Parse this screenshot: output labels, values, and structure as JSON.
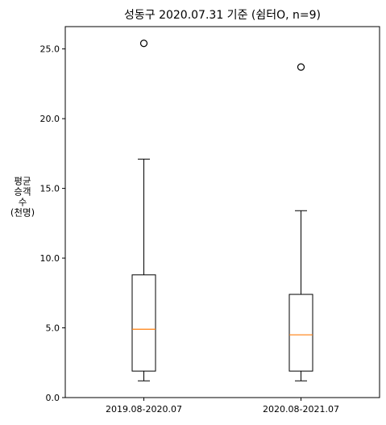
{
  "chart_data": {
    "type": "boxplot",
    "title": "성동구 2020.07.31 기준 (쉼터O, n=9)",
    "ylabel_lines": [
      "평균",
      "승객",
      "수",
      "(천명)"
    ],
    "xlabel": "",
    "ylim": [
      0,
      26.6
    ],
    "yticks": [
      0,
      5,
      10,
      15,
      20,
      25
    ],
    "ytick_labels": [
      "0.0",
      "5.0",
      "10.0",
      "15.0",
      "20.0",
      "25.0"
    ],
    "grid": false,
    "categories": [
      "2019.08-2020.07",
      "2020.08-2021.07"
    ],
    "boxes": [
      {
        "label": "2019.08-2020.07",
        "whisker_low": 1.2,
        "q1": 1.9,
        "median": 4.9,
        "q3": 8.8,
        "whisker_high": 17.1,
        "outliers": [
          25.4
        ]
      },
      {
        "label": "2020.08-2021.07",
        "whisker_low": 1.2,
        "q1": 1.9,
        "median": 4.5,
        "q3": 7.4,
        "whisker_high": 13.4,
        "outliers": [
          23.7
        ]
      }
    ],
    "colors": {
      "box": "#000000",
      "median": "#ff7f0e",
      "outlier": "#000000"
    }
  }
}
